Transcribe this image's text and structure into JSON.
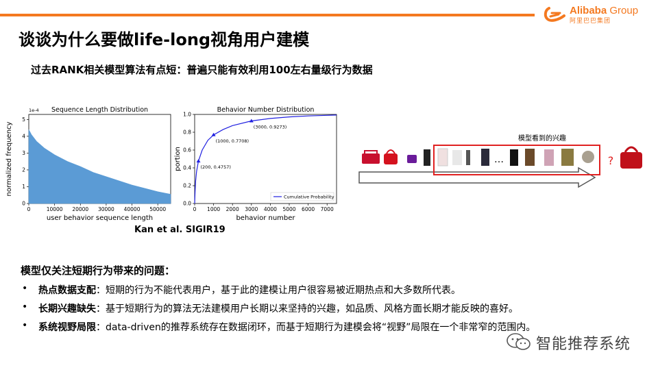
{
  "header": {
    "logo_text": "Alibaba",
    "logo_group": "Group",
    "logo_cn": "阿里巴巴集团",
    "accent_color": "#f47920"
  },
  "title": "谈谈为什么要做life-long视角用户建模",
  "subtitle": "过去RANK相关模型算法有点短：普遍只能有效利用100左右量级行为数据",
  "citation": "Kan et al. SIGIR19",
  "illustration": {
    "label": "模型看到的兴趣",
    "ellipsis": "…",
    "question": "?",
    "highlight_color": "#e02020"
  },
  "section_heading": "模型仅关注短期行为带来的问题：",
  "bullets": [
    {
      "marker": "•",
      "term": "热点数据支配",
      "text": "：短期的行为不能代表用户，基于此的建模让用户很容易被近期热点和大多数所代表。"
    },
    {
      "marker": "•",
      "term": "长期兴趣缺失",
      "text": "：基于短期行为的算法无法建模用户长期以来坚持的兴趣，如品质、风格方面长期才能反映的喜好。"
    },
    {
      "marker": "•",
      "term": "系统视野局限",
      "text": "：data-driven的推荐系统存在数据闭环，而基于短期行为建模会将“视野”局限在一个非常窄的范围内。"
    }
  ],
  "watermark": "智能推荐系统",
  "chart_data": [
    {
      "type": "area",
      "title": "Sequence Length Distribution",
      "xlabel": "user behavior sequence length",
      "ylabel": "normalized frequency",
      "y_scale_label": "1e-4",
      "xlim": [
        0,
        55000
      ],
      "ylim": [
        0,
        5.3
      ],
      "x_ticks": [
        0,
        10000,
        20000,
        30000,
        40000,
        50000
      ],
      "y_ticks": [
        0,
        1,
        2,
        3,
        4,
        5
      ],
      "x": [
        0,
        1000,
        3000,
        6000,
        10000,
        15000,
        20000,
        25000,
        30000,
        35000,
        40000,
        45000,
        50000,
        55000
      ],
      "values": [
        4.4,
        4.1,
        3.7,
        3.3,
        2.9,
        2.5,
        2.2,
        1.85,
        1.6,
        1.35,
        1.1,
        0.9,
        0.7,
        0.55
      ],
      "color": "#5b9bd5"
    },
    {
      "type": "line",
      "title": "Behavior Number Distribution",
      "xlabel": "behavior number",
      "ylabel": "portion",
      "xlim": [
        0,
        7500
      ],
      "ylim": [
        0,
        1.0
      ],
      "x_ticks": [
        0,
        1000,
        2000,
        3000,
        4000,
        5000,
        6000,
        7000
      ],
      "y_ticks": [
        0.0,
        0.2,
        0.4,
        0.6,
        0.8,
        1.0
      ],
      "series": [
        {
          "name": "Cumulative Probability",
          "x": [
            0,
            20,
            50,
            100,
            200,
            400,
            700,
            1000,
            1500,
            2000,
            3000,
            4000,
            5000,
            6000,
            7000,
            7500
          ],
          "values": [
            0.0,
            0.13,
            0.25,
            0.36,
            0.4757,
            0.6,
            0.71,
            0.7708,
            0.83,
            0.875,
            0.9273,
            0.955,
            0.972,
            0.983,
            0.99,
            0.993
          ]
        }
      ],
      "annotations": [
        {
          "x": 200,
          "y": 0.4757,
          "text": "(200, 0.4757)"
        },
        {
          "x": 1000,
          "y": 0.7708,
          "text": "(1000, 0.7708)"
        },
        {
          "x": 3000,
          "y": 0.9273,
          "text": "(3000, 0.9273)"
        }
      ],
      "legend": "bottom-right",
      "color": "#1f1fe0"
    }
  ]
}
